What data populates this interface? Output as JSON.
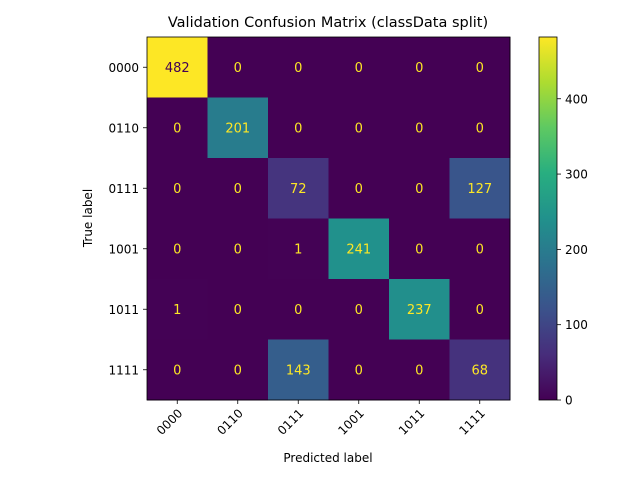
{
  "chart_data": {
    "type": "heatmap",
    "title": "Validation Confusion Matrix (classData split)",
    "xlabel": "Predicted label",
    "ylabel": "True label",
    "labels": [
      "0000",
      "0110",
      "0111",
      "1001",
      "1011",
      "1111"
    ],
    "matrix": [
      [
        482,
        0,
        0,
        0,
        0,
        0
      ],
      [
        0,
        201,
        0,
        0,
        0,
        0
      ],
      [
        0,
        0,
        72,
        0,
        0,
        127
      ],
      [
        0,
        0,
        1,
        241,
        0,
        0
      ],
      [
        1,
        0,
        0,
        0,
        237,
        0
      ],
      [
        0,
        0,
        143,
        0,
        0,
        68
      ]
    ],
    "value_range": [
      0,
      482
    ],
    "colormap": "viridis",
    "colorbar_ticks": [
      0,
      100,
      200,
      300,
      400
    ],
    "grid": false
  }
}
